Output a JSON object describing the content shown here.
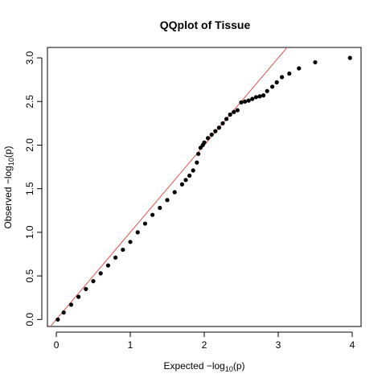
{
  "chart_data": {
    "type": "scatter",
    "title": "QQplot of Tissue",
    "xlabel": {
      "prefix": "Expected  −log",
      "subscript": "10",
      "suffix": "(p)"
    },
    "ylabel": {
      "prefix": "Observed  −log",
      "subscript": "10",
      "suffix": "(p)"
    },
    "xlim": [
      -0.12,
      4.12
    ],
    "ylim": [
      -0.08,
      3.12
    ],
    "xticks": [
      0,
      1,
      2,
      3,
      4
    ],
    "xtick_labels": [
      "0",
      "1",
      "2",
      "3",
      "4"
    ],
    "yticks": [
      0.0,
      0.5,
      1.0,
      1.5,
      2.0,
      2.5,
      3.0
    ],
    "ytick_labels": [
      "0.0",
      "0.5",
      "1.0",
      "1.5",
      "2.0",
      "2.5",
      "3.0"
    ],
    "grid": false,
    "reference_line": {
      "slope": 1,
      "intercept": 0,
      "color": "#e05050"
    },
    "point_color": "#000000",
    "series": [
      {
        "x": [
          0.02,
          0.1,
          0.2,
          0.3,
          0.4,
          0.5,
          0.6,
          0.7,
          0.8,
          0.9,
          1.0,
          1.1,
          1.2,
          1.3,
          1.4,
          1.5,
          1.6,
          1.7,
          1.75,
          1.8,
          1.85,
          1.9,
          1.92,
          1.95,
          1.98,
          2.0,
          2.05,
          2.1,
          2.15,
          2.2,
          2.25,
          2.3,
          2.35,
          2.4,
          2.45,
          2.5,
          2.55,
          2.6,
          2.65,
          2.7,
          2.75,
          2.8,
          2.85,
          2.92,
          2.98,
          3.05,
          3.15,
          3.28,
          3.5,
          3.97
        ],
        "y": [
          0.0,
          0.08,
          0.17,
          0.26,
          0.35,
          0.44,
          0.53,
          0.62,
          0.71,
          0.8,
          0.89,
          1.0,
          1.1,
          1.2,
          1.28,
          1.37,
          1.46,
          1.55,
          1.6,
          1.65,
          1.71,
          1.8,
          1.9,
          1.97,
          2.0,
          2.03,
          2.08,
          2.12,
          2.16,
          2.2,
          2.25,
          2.3,
          2.35,
          2.38,
          2.4,
          2.49,
          2.5,
          2.51,
          2.53,
          2.55,
          2.56,
          2.57,
          2.62,
          2.67,
          2.72,
          2.78,
          2.82,
          2.88,
          2.95,
          3.0
        ]
      }
    ]
  }
}
